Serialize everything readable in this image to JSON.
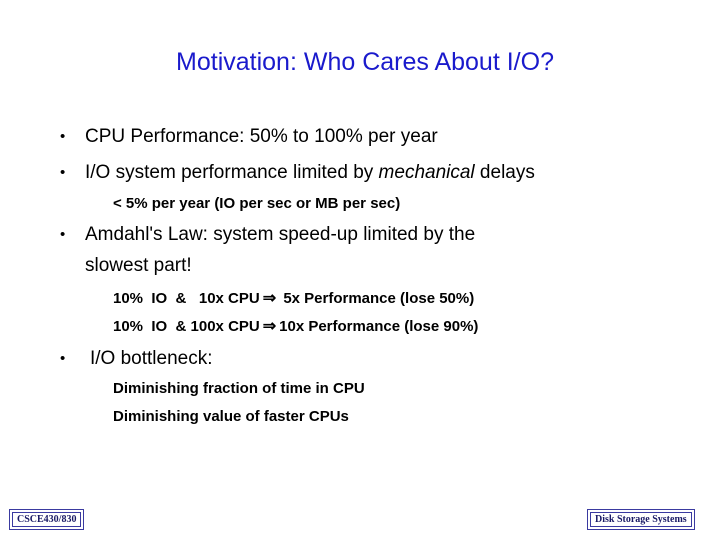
{
  "slide": {
    "title": "Motivation:  Who Cares About I/O?",
    "bullets": [
      {
        "text": "CPU Performance:  50% to 100% per year"
      },
      {
        "text_before": "I/O system performance limited by ",
        "emphasis": "mechanical",
        "text_after": " delays"
      },
      {
        "text": "Amdahl's Law:  system speed-up limited by the",
        "text2": "slowest part!"
      },
      {
        "text": "I/O bottleneck:"
      }
    ],
    "subs": {
      "io_rate": "< 5% per year (IO per sec or MB per sec)",
      "amdahl_1a": "10%  IO  &   10x CPU",
      "amdahl_1b": "5x Performance (lose 50%)",
      "amdahl_2a": "10%  IO  & 100x CPU",
      "amdahl_2b": "10x Performance (lose 90%)",
      "bottleneck_1": "Diminishing fraction of time in CPU",
      "bottleneck_2": "Diminishing value of faster CPUs"
    },
    "arrow_glyph": "⇒",
    "bullet_glyph": "•"
  },
  "footer": {
    "left": "CSCE430/830",
    "right": "Disk Storage Systems"
  },
  "colors": {
    "title": "#1a1acc",
    "footer_border": "#3a3aa0"
  }
}
